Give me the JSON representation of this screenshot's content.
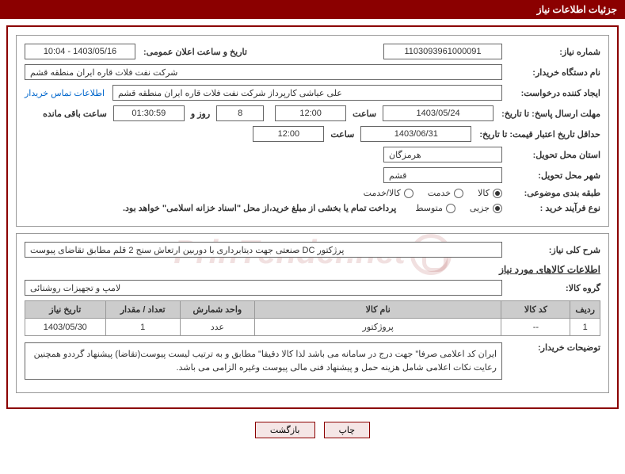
{
  "header": "جزئیات اطلاعات نیاز",
  "labels": {
    "need_no": "شماره نیاز:",
    "announce_dt": "تاریخ و ساعت اعلان عمومی:",
    "buyer_org": "نام دستگاه خریدار:",
    "requester": "ایجاد کننده درخواست:",
    "contact_link": "اطلاعات تماس خریدار",
    "respond_until": "مهلت ارسال پاسخ: تا تاریخ:",
    "hour": "ساعت",
    "days_and": "روز و",
    "remaining": "ساعت باقی مانده",
    "price_valid": "حداقل تاریخ اعتبار قیمت: تا تاریخ:",
    "province": "استان محل تحویل:",
    "city": "شهر محل تحویل:",
    "category": "طبقه بندی موضوعی:",
    "purchase_type": "نوع فرآیند خرید :",
    "payment_note": "پرداخت تمام یا بخشی از مبلغ خرید،از محل \"اسناد خزانه اسلامی\" خواهد بود.",
    "overall_desc": "شرح کلی نیاز:",
    "items_info": "اطلاعات کالاهای مورد نیاز",
    "product_group": "گروه کالا:",
    "buyer_notes": "توضیحات خریدار:"
  },
  "fields": {
    "need_no": "1103093961000091",
    "announce_dt": "1403/05/16 - 10:04",
    "buyer_org": "شرکت نفت فلات قاره ایران منطقه قشم",
    "requester": "علی عیاشی کارپرداز شرکت نفت فلات قاره ایران منطقه قشم",
    "respond_date": "1403/05/24",
    "respond_time": "12:00",
    "days_left": "8",
    "time_left": "01:30:59",
    "valid_date": "1403/06/31",
    "valid_time": "12:00",
    "province": "هرمزگان",
    "city": "قشم",
    "overall_desc": "پرژکتور DC صنعتی جهت دیتابرداری با دوربین ارتعاش سنج 2 قلم مطابق تقاضای پیوست",
    "product_group": "لامپ و تجهیزات روشنائی",
    "buyer_notes": "ایران کد اعلامی صرفا\" جهت درج در سامانه می باشد لذا  کالا دقیقا\" مطابق و به ترتیب لیست پیوست(تقاضا) پیشنهاد گرددو همچنین رعایت نکات اعلامی شامل هزینه حمل و پیشنهاد فنی مالی پیوست وغیره الزامی می باشد."
  },
  "radios": {
    "category": {
      "options": [
        "کالا",
        "خدمت",
        "کالا/خدمت"
      ],
      "selected": 0
    },
    "purchase": {
      "options": [
        "جزیی",
        "متوسط"
      ],
      "selected": 0
    }
  },
  "table": {
    "headers": [
      "ردیف",
      "کد کالا",
      "نام کالا",
      "واحد شمارش",
      "تعداد / مقدار",
      "تاریخ نیاز"
    ],
    "rows": [
      [
        "1",
        "--",
        "پروژکتور",
        "عدد",
        "1",
        "1403/05/30"
      ]
    ]
  },
  "buttons": {
    "print": "چاپ",
    "back": "بازگشت"
  },
  "watermark": "PrinTender.net"
}
